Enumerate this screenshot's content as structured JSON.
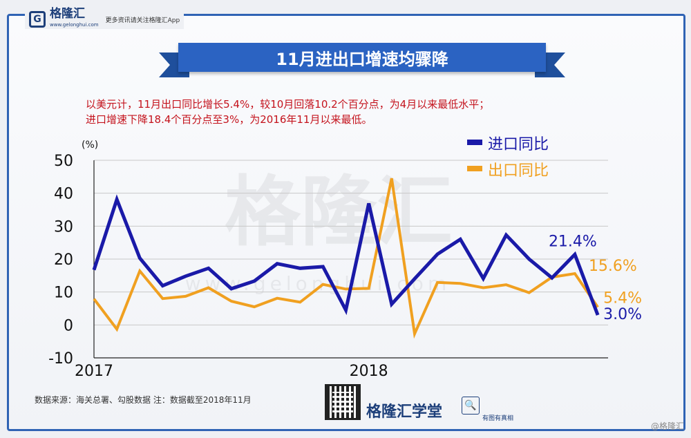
{
  "brand": {
    "logo_letter": "G",
    "name": "格隆汇",
    "domain": "www.gelonghui.com",
    "slogan": "更多资讯请关注格隆汇App"
  },
  "title": "11月进出口增速均骤降",
  "description_lines": [
    "以美元计，11月出口同比增长5.4%，较10月回落10.2个百分点，为4月以来最低水平；",
    "进口增速下降18.4个百分点至3%，为2016年11月以来最低。"
  ],
  "footer": {
    "source": "数据来源：海关总署、勾股数据   注：数据截至2018年11月",
    "academy": "格隆汇学堂",
    "academy_sub": "有图有真相",
    "academy_icon": "chart-magnifier-icon",
    "corner_watermark": "@格隆汇"
  },
  "colors": {
    "import": "#1a1aa8",
    "export": "#f0a020",
    "accent": "#2b63c2",
    "description": "#c4121c"
  },
  "chart_data": {
    "type": "line",
    "ylabel": "(%)",
    "ylim": [
      -10,
      50
    ],
    "yticks": [
      -10,
      0,
      10,
      20,
      30,
      40,
      50
    ],
    "grid": true,
    "legend_position": "top-right",
    "x_labels": [
      {
        "index": 0,
        "label": "2017"
      },
      {
        "index": 12,
        "label": "2018"
      }
    ],
    "x": [
      "2017-01",
      "2017-02",
      "2017-03",
      "2017-04",
      "2017-05",
      "2017-06",
      "2017-07",
      "2017-08",
      "2017-09",
      "2017-10",
      "2017-11",
      "2017-12",
      "2018-01",
      "2018-02",
      "2018-03",
      "2018-04",
      "2018-05",
      "2018-06",
      "2018-07",
      "2018-08",
      "2018-09",
      "2018-10",
      "2018-11"
    ],
    "series": [
      {
        "name": "进口同比",
        "color": "#1a1aa8",
        "values": [
          16.7,
          38.1,
          20.3,
          11.9,
          14.8,
          17.2,
          11.0,
          13.3,
          18.6,
          17.2,
          17.7,
          4.5,
          36.9,
          6.3,
          14.0,
          21.5,
          26.0,
          14.1,
          27.3,
          20.0,
          14.3,
          21.4,
          3.0
        ],
        "end_label": "21.4%",
        "end_label2": "3.0%"
      },
      {
        "name": "出口同比",
        "color": "#f0a020",
        "values": [
          7.9,
          -1.3,
          16.4,
          8.0,
          8.7,
          11.3,
          7.2,
          5.5,
          8.1,
          6.9,
          12.3,
          10.9,
          11.1,
          44.5,
          -2.7,
          12.9,
          12.6,
          11.3,
          12.2,
          9.8,
          14.5,
          15.6,
          5.4
        ],
        "end_label": "15.6%",
        "end_label2": "5.4%"
      }
    ]
  }
}
